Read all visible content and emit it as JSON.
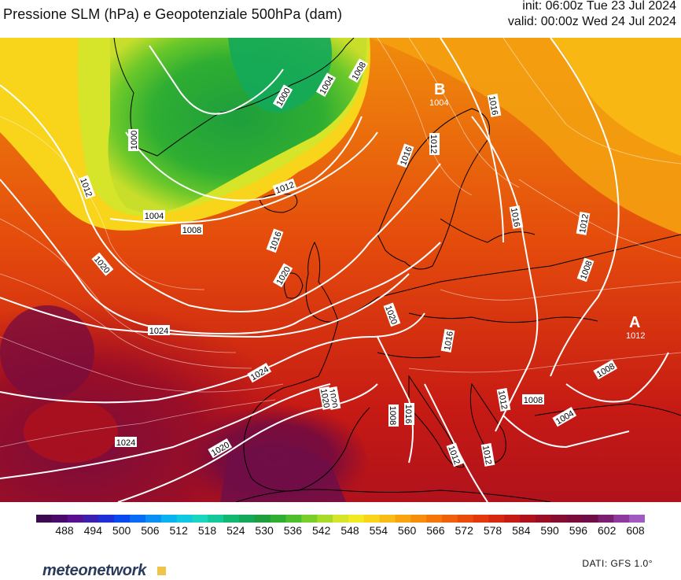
{
  "header": {
    "title": "Pressione SLM (hPa) e Geopotenziale 500hPa (dam)",
    "init": "init: 06:00z Tue 23 Jul 2024",
    "valid": "valid: 00:00z Wed 24 Jul 2024"
  },
  "map": {
    "centers": [
      {
        "id": "low",
        "letter": "B",
        "value": "1004"
      },
      {
        "id": "high",
        "letter": "A",
        "value": "1012"
      }
    ],
    "isobars": [
      "1000",
      "1004",
      "1008",
      "1012",
      "1016",
      "1020",
      "1024"
    ],
    "isobar_labels": [
      "1000",
      "1000",
      "1004",
      "1008",
      "1012",
      "1004",
      "1008",
      "1012",
      "1016",
      "1016",
      "1020",
      "1020",
      "1024",
      "1024",
      "1024",
      "1020",
      "1020",
      "1020",
      "1016",
      "1016",
      "1012",
      "1008",
      "1008",
      "1012",
      "1016",
      "1012",
      "1016",
      "1008",
      "1012",
      "1004",
      "1008",
      "1012",
      "1020"
    ],
    "colors": {
      "isobar": "#ffffff",
      "coast": "#000000"
    }
  },
  "colorbar": {
    "ticks": [
      "488",
      "494",
      "500",
      "506",
      "512",
      "518",
      "524",
      "530",
      "536",
      "542",
      "548",
      "554",
      "560",
      "566",
      "572",
      "578",
      "584",
      "590",
      "596",
      "602",
      "608"
    ],
    "palette": [
      "#3b0a4f",
      "#4a0a6a",
      "#5a0f90",
      "#3a1fb0",
      "#1f2fd8",
      "#0a48f0",
      "#0a6cf5",
      "#0a8ff5",
      "#0ab2f0",
      "#10c8e0",
      "#1ad5c0",
      "#14c89a",
      "#10b870",
      "#14a85a",
      "#1e9e3c",
      "#2fae32",
      "#4fbe2c",
      "#7ace2a",
      "#a8da28",
      "#d6e42a",
      "#f2ea20",
      "#f8d41a",
      "#f8bc14",
      "#f8a410",
      "#f88c0c",
      "#f4760a",
      "#f0600a",
      "#ea4a0a",
      "#e2380c",
      "#d6280e",
      "#c61a14",
      "#b0121c",
      "#9a0e26",
      "#860c30",
      "#7a0c3c",
      "#6e0e48",
      "#7a1e70",
      "#8c3a9c",
      "#a05ac0"
    ]
  },
  "footer": {
    "logo": "meteonetwork",
    "source": "DATI: GFS 1.0°"
  }
}
